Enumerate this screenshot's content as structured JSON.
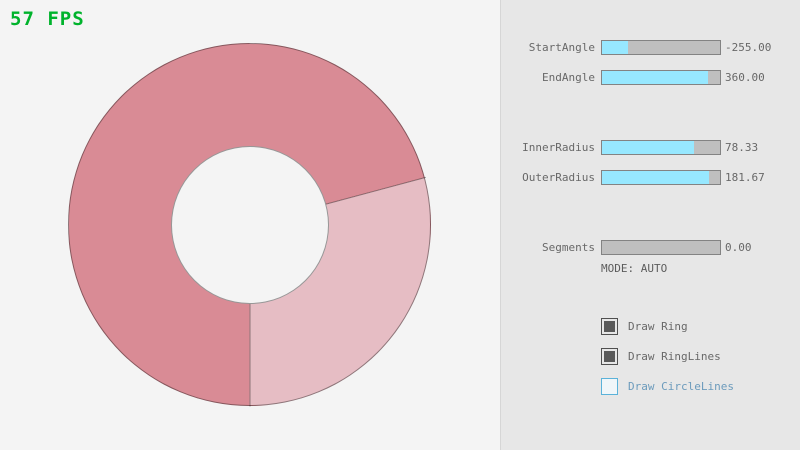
{
  "app": {
    "fps_label": "57 FPS",
    "fps_color": "#00b32c"
  },
  "ring": {
    "start_angle": -255.0,
    "end_angle": 360.0,
    "inner_radius": 78.33,
    "outer_radius": 181.67,
    "segments": 0,
    "fill_color": "#d98b95",
    "overlap_light_color": "#e6bdc4",
    "outline_color": "#6f5a5f"
  },
  "panel": {
    "slider_fill_color": "#97e8ff",
    "accent_color": "#5bb2d9",
    "sliders": [
      {
        "label": "StartAngle",
        "value": "-255.00",
        "fill_pct": 22
      },
      {
        "label": "EndAngle",
        "value": "360.00",
        "fill_pct": 90
      },
      {
        "label": "InnerRadius",
        "value": "78.33",
        "fill_pct": 78
      },
      {
        "label": "OuterRadius",
        "value": "181.67",
        "fill_pct": 91
      },
      {
        "label": "Segments",
        "value": "0.00",
        "fill_pct": 0
      }
    ],
    "mode_text": "MODE: AUTO",
    "checkboxes": [
      {
        "label": "Draw Ring",
        "checked": true
      },
      {
        "label": "Draw RingLines",
        "checked": true
      },
      {
        "label": "Draw CircleLines",
        "checked": false
      }
    ]
  }
}
